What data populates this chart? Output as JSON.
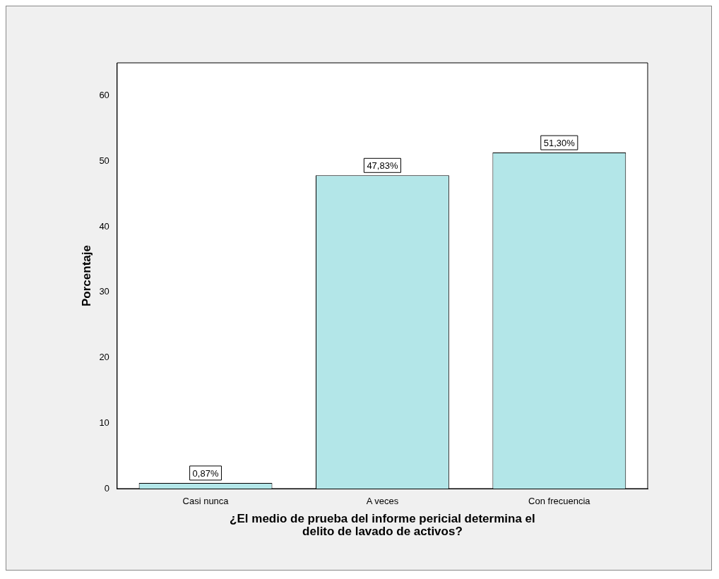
{
  "chart_data": {
    "type": "bar",
    "xlabel": "¿El medio de prueba del informe pericial determina el delito de lavado de activos?",
    "ylabel": "Porcentaje",
    "categories": [
      "Casi nunca",
      "A veces",
      "Con frecuencia"
    ],
    "values": [
      0.87,
      47.83,
      51.3
    ],
    "value_labels": [
      "0,87%",
      "47,83%",
      "51,30%"
    ],
    "color": "#b3e6e8",
    "ylim": [
      0,
      65
    ],
    "yticks": [
      0,
      10,
      20,
      30,
      40,
      50,
      60
    ],
    "grid": false,
    "legend": false
  }
}
